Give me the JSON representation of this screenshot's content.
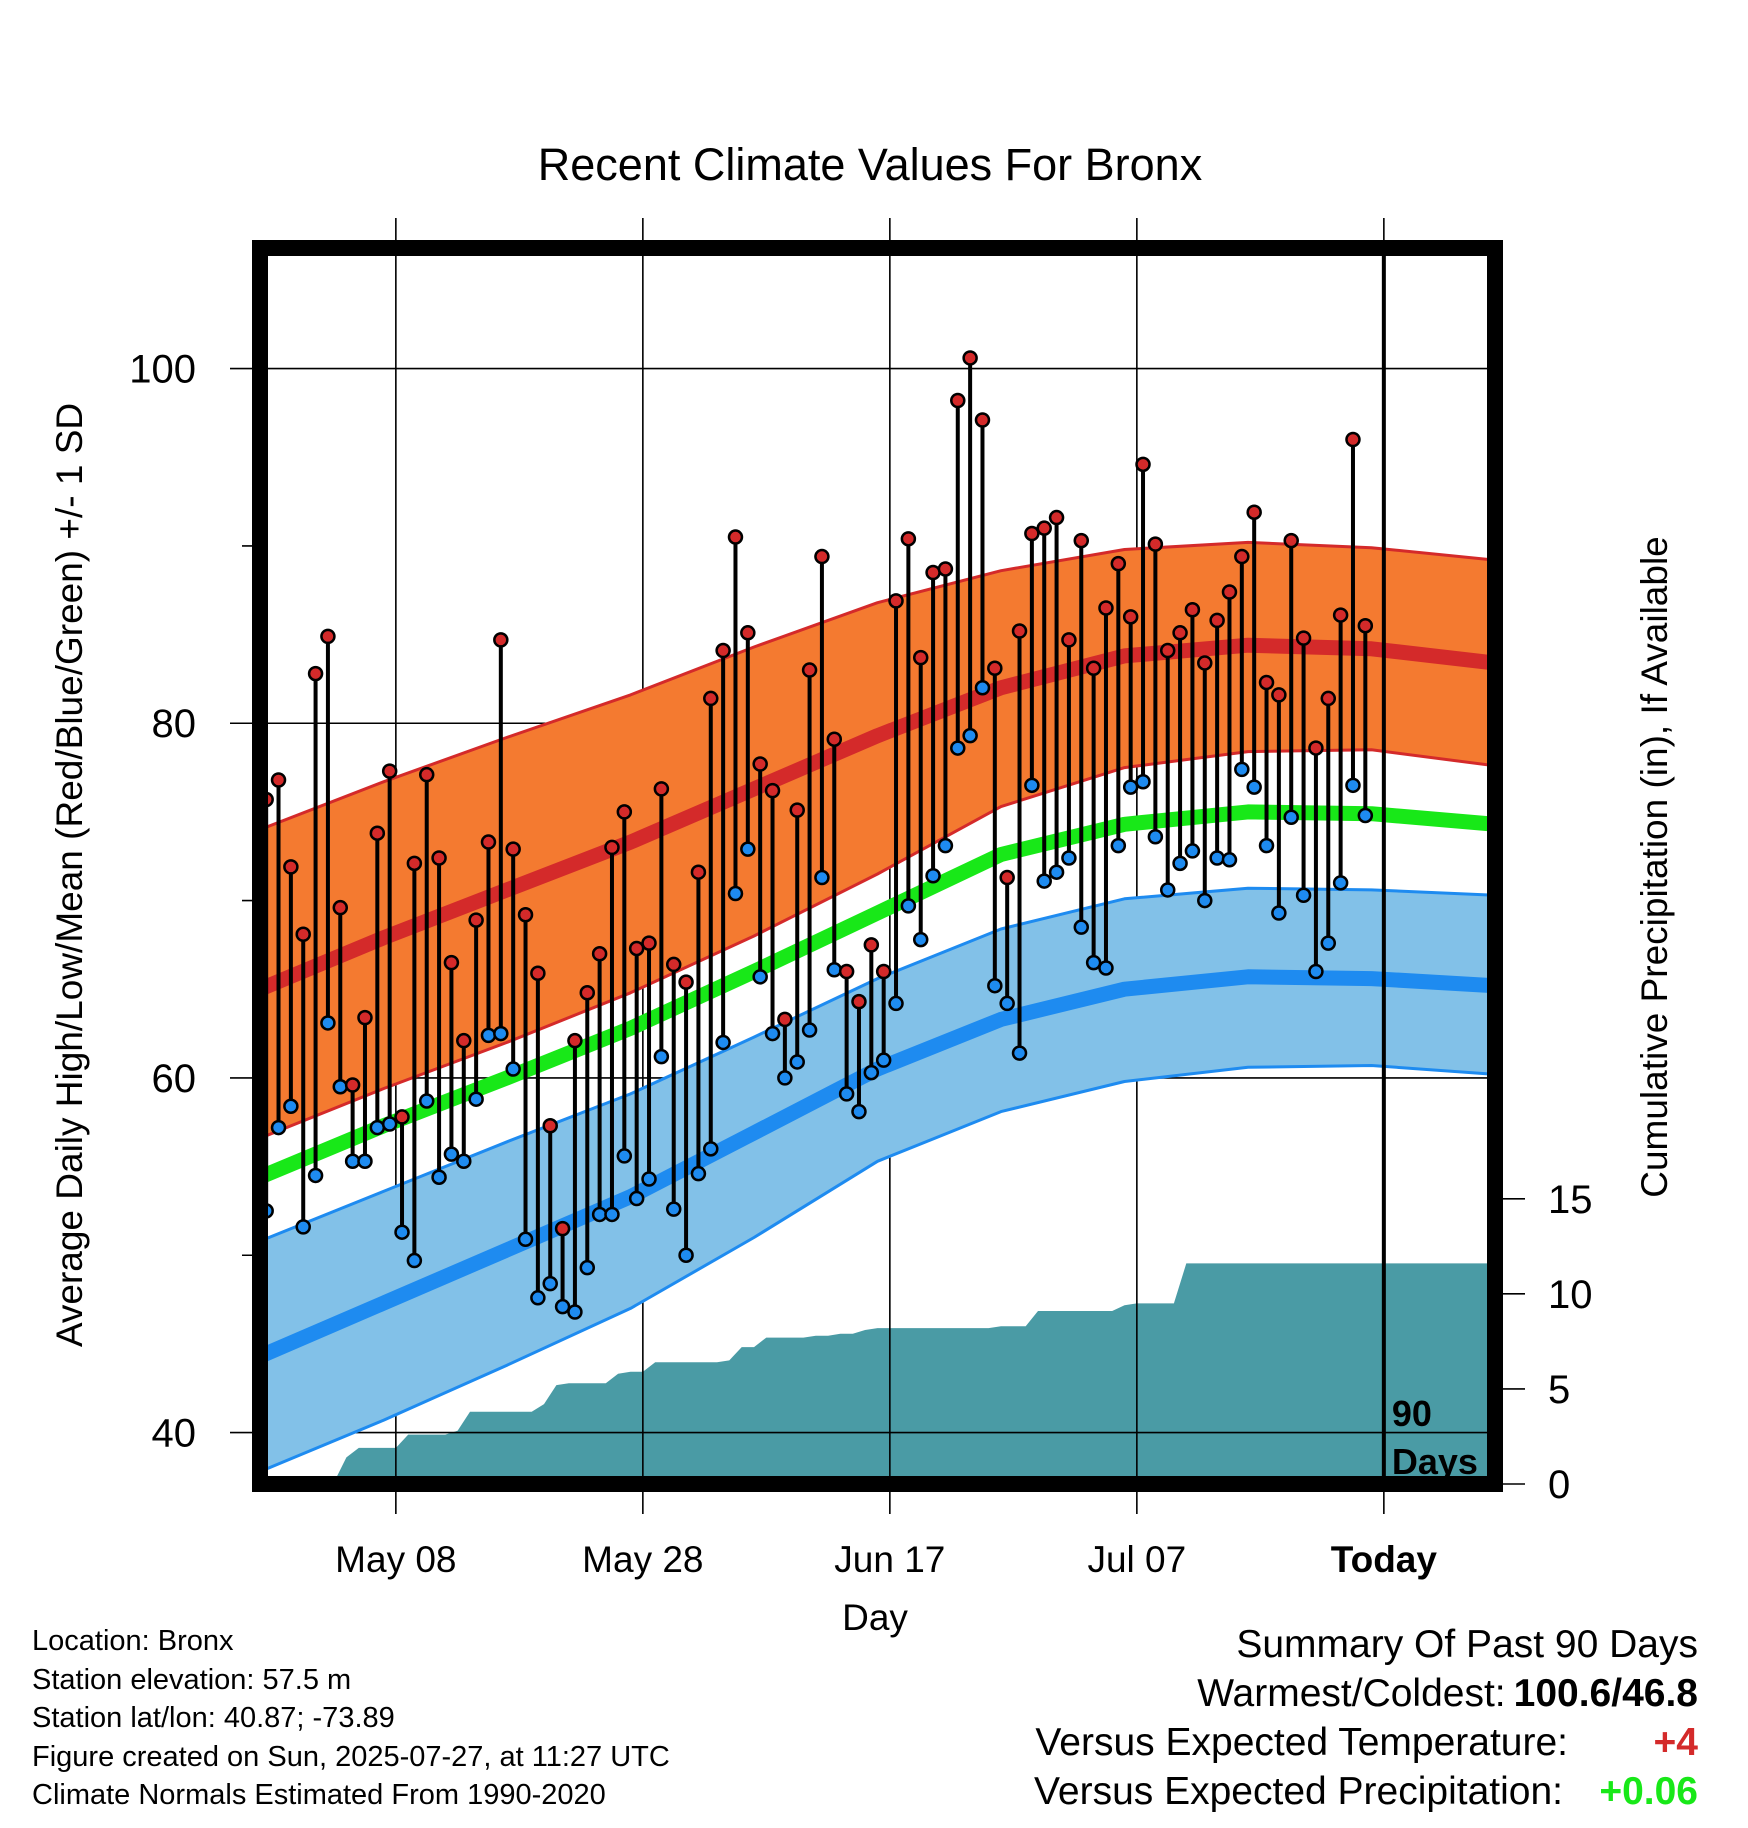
{
  "chart_data": {
    "type": "line",
    "title": "Recent Climate Values For Bronx",
    "xlabel": "Day",
    "ylabel": "Average Daily High/Low/Mean (Red/Blue/Green) +/- 1 SD",
    "y2label": "Cumulative Precipitation (in), If Available",
    "x_tick_labels": [
      "May 08",
      "May 28",
      "Jun 17",
      "Jul 07",
      "Today"
    ],
    "x_tick_day_index": [
      11,
      31,
      51,
      71,
      91
    ],
    "x_range_day_index": [
      0,
      100
    ],
    "ylim": [
      37.1,
      106.8
    ],
    "y_ticks": [
      40,
      60,
      80,
      100
    ],
    "y_minor_ticks": [
      50,
      70,
      90
    ],
    "y2lim": [
      0,
      65
    ],
    "y2_ticks": [
      0,
      5,
      10,
      15
    ],
    "marker_label": "90 Days",
    "colors": {
      "high_band": "#F47A30",
      "high_mean": "#D42A2A",
      "high_sd_line": "#D42A2A",
      "mean_line": "#18E818",
      "low_band": "#82C1E8",
      "low_mean": "#1E8BF0",
      "low_sd_line": "#1E8BF0",
      "precip": "#4A9BA5",
      "high_point": "#D42A2A",
      "low_point": "#1E8BF0"
    },
    "normals": {
      "day_index": [
        0,
        10,
        20,
        30,
        40,
        50,
        60,
        70,
        80,
        90,
        100
      ],
      "high_mean": [
        65,
        67.9,
        70.6,
        73.3,
        76.3,
        79.3,
        82,
        83.8,
        84.4,
        84.2,
        83.4
      ],
      "high_upper": [
        74,
        76.7,
        79.2,
        81.6,
        84.3,
        86.8,
        88.6,
        89.8,
        90.2,
        89.9,
        89.2
      ],
      "high_lower": [
        56.6,
        59.4,
        62,
        64.8,
        68,
        71.5,
        75.3,
        77.5,
        78.4,
        78.5,
        77.6
      ],
      "mean_line": [
        54.4,
        57.3,
        60,
        62.8,
        66,
        69.3,
        72.6,
        74.3,
        75,
        74.9,
        74.3
      ],
      "low_upper": [
        50.8,
        53.6,
        56.4,
        59.1,
        62.3,
        65.6,
        68.4,
        70.1,
        70.7,
        70.6,
        70.3
      ],
      "low_mean": [
        44.3,
        47.3,
        50.3,
        53.3,
        56.9,
        60.5,
        63.3,
        65,
        65.7,
        65.6,
        65.2
      ],
      "low_lower": [
        37.8,
        40.7,
        43.8,
        47,
        51,
        55.3,
        58.1,
        59.8,
        60.6,
        60.7,
        60.2
      ]
    },
    "daily": {
      "day_index": [
        0,
        1,
        2,
        3,
        4,
        5,
        6,
        7,
        8,
        9,
        10,
        11,
        12,
        13,
        14,
        15,
        16,
        17,
        18,
        19,
        20,
        21,
        22,
        23,
        24,
        25,
        26,
        27,
        28,
        29,
        30,
        31,
        32,
        33,
        34,
        35,
        36,
        37,
        38,
        39,
        40,
        41,
        42,
        43,
        44,
        45,
        46,
        47,
        48,
        49,
        50,
        51,
        52,
        53,
        54,
        55,
        56,
        57,
        58,
        59,
        60,
        61,
        62,
        63,
        64,
        65,
        66,
        67,
        68,
        69,
        70,
        71,
        72,
        73,
        74,
        75,
        76,
        77,
        78,
        79,
        80,
        81,
        82,
        83,
        84,
        85,
        86,
        87,
        88,
        89
      ],
      "high": [
        75.7,
        76.8,
        71.9,
        68.1,
        82.8,
        84.9,
        69.6,
        59.6,
        63.4,
        73.8,
        77.3,
        57.8,
        72.1,
        77.1,
        72.4,
        66.5,
        62.1,
        68.9,
        73.3,
        84.7,
        72.9,
        69.2,
        65.9,
        57.3,
        51.5,
        62.1,
        64.8,
        67,
        73,
        75,
        67.3,
        67.6,
        76.3,
        66.4,
        65.4,
        71.6,
        81.4,
        84.1,
        90.5,
        85.1,
        77.7,
        76.2,
        63.3,
        75.1,
        83,
        89.4,
        79.1,
        66,
        64.3,
        67.5,
        66,
        86.9,
        90.4,
        83.7,
        88.5,
        88.7,
        98.2,
        100.6,
        97.1,
        83.1,
        71.3,
        85.2,
        90.7,
        91,
        91.6,
        84.7,
        90.3,
        83.1,
        86.5,
        89,
        86,
        94.6,
        90.1,
        84.1,
        85.1,
        86.4,
        83.4,
        85.8,
        87.4,
        89.4,
        91.9,
        82.3,
        81.6,
        90.3,
        84.8,
        78.6,
        81.4,
        86.1,
        96,
        85.5
      ],
      "low": [
        52.5,
        57.2,
        58.4,
        51.6,
        54.5,
        63.1,
        59.5,
        55.3,
        55.3,
        57.2,
        57.4,
        51.3,
        49.7,
        58.7,
        54.4,
        55.7,
        55.3,
        58.8,
        62.4,
        62.5,
        60.5,
        50.9,
        47.6,
        48.4,
        47.1,
        46.8,
        49.3,
        52.3,
        52.3,
        55.6,
        53.2,
        54.3,
        61.2,
        52.6,
        50,
        54.6,
        56,
        62,
        70.4,
        72.9,
        65.7,
        62.5,
        60,
        60.9,
        62.7,
        71.3,
        66.1,
        59.1,
        58.1,
        60.3,
        61,
        64.2,
        69.7,
        67.8,
        71.4,
        73.1,
        78.6,
        79.3,
        82,
        65.2,
        64.2,
        61.4,
        76.5,
        71.1,
        71.6,
        72.4,
        68.5,
        66.5,
        66.2,
        73.1,
        76.4,
        76.7,
        73.6,
        70.6,
        72.1,
        72.8,
        70,
        72.4,
        72.3,
        77.4,
        76.4,
        73.1,
        69.3,
        74.7,
        70.3,
        66,
        67.6,
        71,
        76.5,
        74.8
      ]
    },
    "precip": {
      "day_index": [
        0,
        5,
        6,
        7,
        8,
        11,
        12,
        13,
        14,
        15,
        16,
        17,
        18,
        19,
        20,
        21,
        22,
        23,
        24,
        25,
        26,
        27,
        28,
        29,
        30,
        31,
        32,
        33,
        34,
        35,
        36,
        37,
        38,
        39,
        40,
        41,
        42,
        43,
        44,
        45,
        46,
        47,
        48,
        49,
        50,
        51,
        52,
        53,
        54,
        55,
        56,
        57,
        58,
        59,
        60,
        61,
        62,
        63,
        64,
        65,
        66,
        67,
        68,
        69,
        70,
        71,
        72,
        73,
        74,
        75,
        76,
        77,
        78,
        79,
        80,
        81,
        82,
        83,
        84,
        85,
        86,
        87,
        88,
        89,
        90,
        91,
        92,
        93,
        94,
        95,
        96,
        97,
        98,
        99,
        100
      ],
      "cumulative": [
        0,
        0,
        0.1,
        1.4,
        1.9,
        1.9,
        2.6,
        2.6,
        2.6,
        2.6,
        2.8,
        3.8,
        3.8,
        3.8,
        3.8,
        3.8,
        3.8,
        4.2,
        5.2,
        5.3,
        5.3,
        5.3,
        5.3,
        5.8,
        5.9,
        5.9,
        6.4,
        6.4,
        6.4,
        6.4,
        6.4,
        6.4,
        6.5,
        7.2,
        7.2,
        7.7,
        7.7,
        7.7,
        7.7,
        7.8,
        7.8,
        7.9,
        7.9,
        8.1,
        8.2,
        8.2,
        8.2,
        8.2,
        8.2,
        8.2,
        8.2,
        8.2,
        8.2,
        8.2,
        8.3,
        8.3,
        8.3,
        9.1,
        9.1,
        9.1,
        9.1,
        9.1,
        9.1,
        9.1,
        9.4,
        9.5,
        9.5,
        9.5,
        9.5,
        11.6,
        11.6,
        11.6,
        11.6,
        11.6,
        11.6,
        11.6,
        11.6,
        11.6,
        11.6,
        11.6,
        11.6,
        11.6,
        11.6,
        11.6,
        11.6,
        11.6,
        11.6,
        11.6,
        11.6,
        11.6,
        11.6,
        11.6,
        11.6,
        11.6,
        11.6
      ]
    }
  },
  "station_info": [
    "Location: Bronx",
    "Station elevation: 57.5 m",
    "Station lat/lon: 40.87; -73.89",
    "Figure created on Sun, 2025-07-27, at 11:27 UTC",
    "Climate Normals Estimated From 1990-2020"
  ],
  "summary": {
    "title": "Summary Of Past 90 Days",
    "warm_cold_label": "Warmest/Coldest:",
    "warm_cold_value": "100.6/46.8",
    "temp_label": "Versus Expected Temperature:",
    "temp_value": "+4",
    "temp_value_color": "#D42A2A",
    "precip_label": "Versus Expected Precipitation:",
    "precip_value": "+0.06",
    "precip_value_color": "#18E818"
  }
}
